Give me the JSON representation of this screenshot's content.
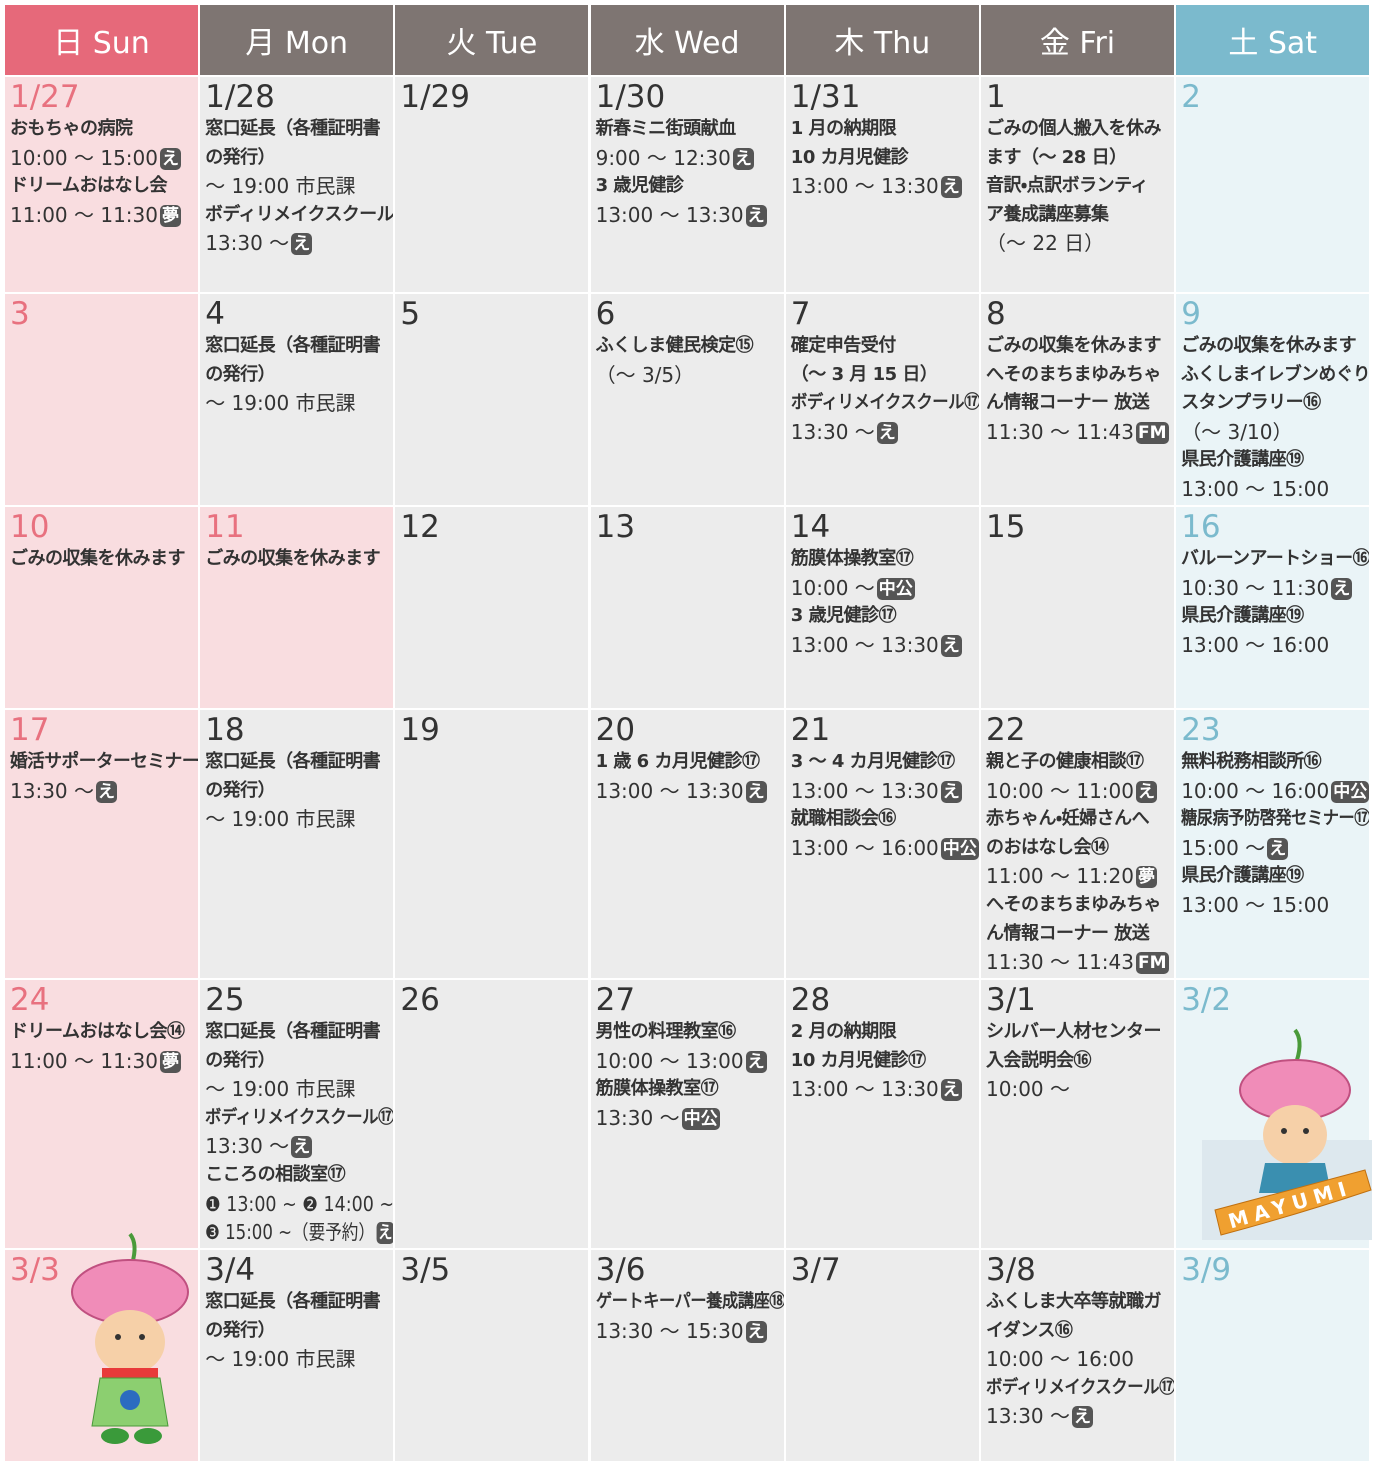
{
  "header": {
    "days": [
      "日 Sun",
      "月 Mon",
      "火 Tue",
      "水 Wed",
      "木 Thu",
      "金 Fri",
      "土 Sat"
    ]
  },
  "weeks": [
    [
      {
        "date": "1/27",
        "lines": [
          {
            "text": "おもちゃの病院",
            "bold": true
          },
          {
            "text": "10:00 ～ 15:00",
            "badge": "え"
          },
          {
            "text": "ドリームおはなし会",
            "bold": true
          },
          {
            "text": "11:00 ～ 11:30",
            "badge": "夢"
          }
        ]
      },
      {
        "date": "1/28",
        "lines": [
          {
            "text": "窓口延長（各種証明書",
            "bold": true
          },
          {
            "text": "の発行）",
            "bold": true
          },
          {
            "text": "～ 19:00 市民課"
          },
          {
            "text": "ボディリメイクスクール",
            "bold": true
          },
          {
            "text": "13:30 ～",
            "badge": "え"
          }
        ]
      },
      {
        "date": "1/29",
        "lines": []
      },
      {
        "date": "1/30",
        "lines": [
          {
            "text": "新春ミニ街頭献血",
            "bold": true
          },
          {
            "text": "9:00 ～ 12:30",
            "badge": "え"
          },
          {
            "text": "3 歳児健診",
            "bold": true
          },
          {
            "text": "13:00 ～ 13:30",
            "badge": "え"
          }
        ]
      },
      {
        "date": "1/31",
        "lines": [
          {
            "text": "1 月の納期限",
            "bold": true
          },
          {
            "text": "10 カ月児健診",
            "bold": true
          },
          {
            "text": "13:00 ～ 13:30",
            "badge": "え"
          }
        ]
      },
      {
        "date": "1",
        "lines": [
          {
            "text": "ごみの個人搬入を休み",
            "bold": true
          },
          {
            "text": "ます（～ 28 日）",
            "bold": true
          },
          {
            "text": "音訳・点訳ボランティ",
            "bold": true
          },
          {
            "text": "ア養成講座募集",
            "bold": true
          },
          {
            "text": "（～ 22 日）"
          }
        ]
      },
      {
        "date": "2",
        "lines": []
      }
    ],
    [
      {
        "date": "3",
        "lines": []
      },
      {
        "date": "4",
        "lines": [
          {
            "text": "窓口延長（各種証明書",
            "bold": true
          },
          {
            "text": "の発行）",
            "bold": true
          },
          {
            "text": "～ 19:00 市民課"
          }
        ]
      },
      {
        "date": "5",
        "lines": []
      },
      {
        "date": "6",
        "lines": [
          {
            "text": "ふくしま健民検定⑮",
            "bold": true
          },
          {
            "text": "（～ 3/5）"
          }
        ]
      },
      {
        "date": "7",
        "lines": [
          {
            "text": "確定申告受付",
            "bold": true
          },
          {
            "text": "（～ 3 月 15 日）",
            "bold": true
          },
          {
            "text": "ボディリメイクスクール⑰",
            "bold": true
          },
          {
            "text": "13:30 ～",
            "badge": "え"
          }
        ]
      },
      {
        "date": "8",
        "lines": [
          {
            "text": "ごみの収集を休みます",
            "bold": true
          },
          {
            "text": "へそのまちまゆみちゃ",
            "bold": true
          },
          {
            "text": "ん情報コーナー 放送",
            "bold": true
          },
          {
            "text": "11:30 ～ 11:43",
            "badge": "FM"
          }
        ]
      },
      {
        "date": "9",
        "lines": [
          {
            "text": "ごみの収集を休みます",
            "bold": true
          },
          {
            "text": "ふくしまイレブンめぐり",
            "bold": true
          },
          {
            "text": "スタンプラリー⑯",
            "bold": true
          },
          {
            "text": "（～ 3/10）"
          },
          {
            "text": "県民介護講座⑲",
            "bold": true
          },
          {
            "text": "13:00 ～ 15:00"
          }
        ]
      }
    ],
    [
      {
        "date": "10",
        "lines": [
          {
            "text": "ごみの収集を休みます",
            "bold": true
          }
        ]
      },
      {
        "date": "11",
        "holiday": true,
        "lines": [
          {
            "text": "ごみの収集を休みます",
            "bold": true
          }
        ]
      },
      {
        "date": "12",
        "lines": []
      },
      {
        "date": "13",
        "lines": []
      },
      {
        "date": "14",
        "lines": [
          {
            "text": "筋膜体操教室⑰",
            "bold": true
          },
          {
            "text": "10:00 ～",
            "badge": "中公"
          },
          {
            "text": "3 歳児健診⑰",
            "bold": true
          },
          {
            "text": "13:00 ～ 13:30",
            "badge": "え"
          }
        ]
      },
      {
        "date": "15",
        "lines": []
      },
      {
        "date": "16",
        "lines": [
          {
            "text": "バルーンアートショー⑯",
            "bold": true
          },
          {
            "text": "10:30 ～ 11:30",
            "badge": "え"
          },
          {
            "text": "県民介護講座⑲",
            "bold": true
          },
          {
            "text": "13:00 ～ 16:00"
          }
        ]
      }
    ],
    [
      {
        "date": "17",
        "lines": [
          {
            "text": "婚活サポーターセミナー",
            "bold": true
          },
          {
            "text": "13:30 ～",
            "badge": "え"
          }
        ]
      },
      {
        "date": "18",
        "lines": [
          {
            "text": "窓口延長（各種証明書",
            "bold": true
          },
          {
            "text": "の発行）",
            "bold": true
          },
          {
            "text": "～ 19:00 市民課"
          }
        ]
      },
      {
        "date": "19",
        "lines": []
      },
      {
        "date": "20",
        "lines": [
          {
            "text": "1 歳 6 カ月児健診⑰",
            "bold": true
          },
          {
            "text": "13:00 ～ 13:30",
            "badge": "え"
          }
        ]
      },
      {
        "date": "21",
        "lines": [
          {
            "text": "3 ～ 4 カ月児健診⑰",
            "bold": true
          },
          {
            "text": "13:00 ～ 13:30",
            "badge": "え"
          },
          {
            "text": "就職相談会⑯",
            "bold": true
          },
          {
            "text": "13:00 ～ 16:00",
            "badge": "中公"
          }
        ]
      },
      {
        "date": "22",
        "lines": [
          {
            "text": "親と子の健康相談⑰",
            "bold": true
          },
          {
            "text": "10:00 ～ 11:00",
            "badge": "え"
          },
          {
            "text": "赤ちゃん・妊婦さんへ",
            "bold": true
          },
          {
            "text": "のおはなし会⑭",
            "bold": true
          },
          {
            "text": "11:00 ～ 11:20",
            "badge": "夢"
          },
          {
            "text": "へそのまちまゆみちゃ",
            "bold": true
          },
          {
            "text": "ん情報コーナー 放送",
            "bold": true
          },
          {
            "text": "11:30 ～ 11:43",
            "badge": "FM"
          }
        ]
      },
      {
        "date": "23",
        "lines": [
          {
            "text": "無料税務相談所⑯",
            "bold": true
          },
          {
            "text": "10:00 ～ 16:00",
            "badge": "中公"
          },
          {
            "text": "糖尿病予防啓発セミナー⑰",
            "bold": true
          },
          {
            "text": "15:00 ～",
            "badge": "え"
          },
          {
            "text": "県民介護講座⑲",
            "bold": true
          },
          {
            "text": "13:00 ～ 15:00"
          }
        ]
      }
    ],
    [
      {
        "date": "24",
        "lines": [
          {
            "text": "ドリームおはなし会⑭",
            "bold": true
          },
          {
            "text": "11:00 ～ 11:30",
            "badge": "夢"
          }
        ]
      },
      {
        "date": "25",
        "lines": [
          {
            "text": "窓口延長（各種証明書",
            "bold": true
          },
          {
            "text": "の発行）",
            "bold": true
          },
          {
            "text": "～ 19:00 市民課"
          },
          {
            "text": "ボディリメイクスクール⑰",
            "bold": true
          },
          {
            "text": "13:30 ～",
            "badge": "え"
          },
          {
            "text": "こころの相談室⑰",
            "bold": true
          },
          {
            "text": "❶ 13:00 ~ ❷ 14:00 ~"
          },
          {
            "text": "❸ 15:00 ~（要予約）",
            "badge": "え"
          }
        ]
      },
      {
        "date": "26",
        "lines": []
      },
      {
        "date": "27",
        "lines": [
          {
            "text": "男性の料理教室⑯",
            "bold": true
          },
          {
            "text": "10:00 ～ 13:00",
            "badge": "え"
          },
          {
            "text": "筋膜体操教室⑰",
            "bold": true
          },
          {
            "text": "13:30 ～",
            "badge": "中公"
          }
        ]
      },
      {
        "date": "28",
        "lines": [
          {
            "text": "2 月の納期限",
            "bold": true
          },
          {
            "text": "10 カ月児健診⑰",
            "bold": true
          },
          {
            "text": "13:00 ～ 13:30",
            "badge": "え"
          }
        ]
      },
      {
        "date": "3/1",
        "lines": [
          {
            "text": "シルバー人材センター",
            "bold": true
          },
          {
            "text": "入会説明会⑯",
            "bold": true
          },
          {
            "text": "10:00 ～"
          }
        ]
      },
      {
        "date": "3/2",
        "lines": [],
        "mascot_label": "MAYUMI"
      }
    ],
    [
      {
        "date": "3/3",
        "lines": []
      },
      {
        "date": "3/4",
        "lines": [
          {
            "text": "窓口延長（各種証明書",
            "bold": true
          },
          {
            "text": "の発行）",
            "bold": true
          },
          {
            "text": "～ 19:00 市民課"
          }
        ]
      },
      {
        "date": "3/5",
        "lines": []
      },
      {
        "date": "3/6",
        "lines": [
          {
            "text": "ゲートキーパー養成講座⑱",
            "bold": true
          },
          {
            "text": "13:30 ～ 15:30",
            "badge": "え"
          }
        ]
      },
      {
        "date": "3/7",
        "lines": []
      },
      {
        "date": "3/8",
        "lines": [
          {
            "text": "ふくしま大卒等就職ガ",
            "bold": true
          },
          {
            "text": "イダンス⑯",
            "bold": true
          },
          {
            "text": "10:00 ～ 16:00"
          },
          {
            "text": "ボディリメイクスクール⑰",
            "bold": true
          },
          {
            "text": "13:30 ～",
            "badge": "え"
          }
        ]
      },
      {
        "date": "3/9",
        "lines": []
      }
    ]
  ]
}
